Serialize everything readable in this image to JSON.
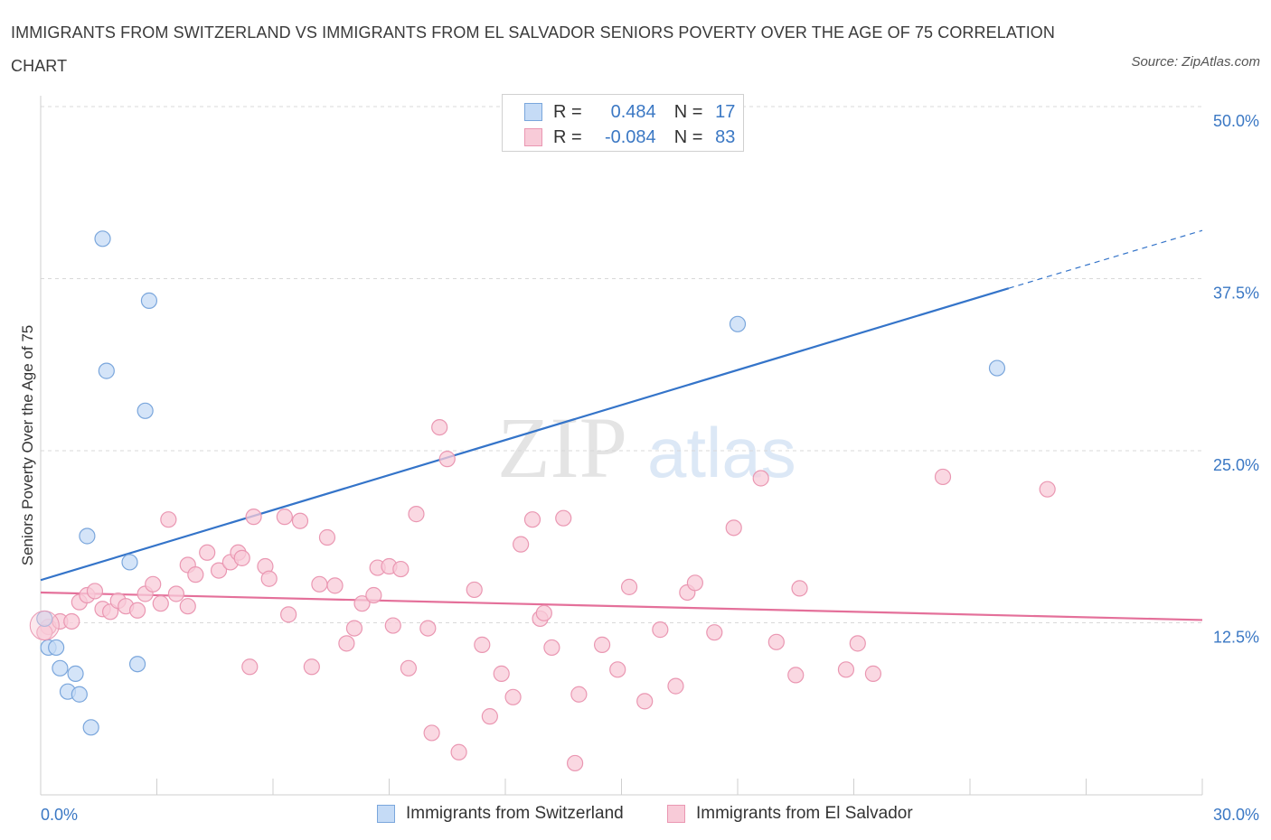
{
  "title": "IMMIGRANTS FROM SWITZERLAND VS IMMIGRANTS FROM EL SALVADOR SENIORS POVERTY OVER THE AGE OF 75 CORRELATION CHART",
  "source": "Source: ZipAtlas.com",
  "watermark": {
    "zip": "ZIP",
    "atlas": "atlas"
  },
  "legend": {
    "r_label": "R =",
    "n_label": "N =",
    "rows": [
      {
        "r": "0.484",
        "n": "17",
        "color": "#a9c8ef"
      },
      {
        "r": "-0.084",
        "n": "83",
        "color": "#f5b6c9"
      }
    ]
  },
  "bottom_legend": [
    "Immigrants from Switzerland",
    "Immigrants from El Salvador"
  ],
  "colors": {
    "blue_fill": "#c5dbf6",
    "blue_stroke": "#7aa6dc",
    "blue_line": "#3474c9",
    "pink_fill": "#f8cbd8",
    "pink_stroke": "#ea97b2",
    "pink_line": "#e4709a",
    "tick_label": "#3b78c4",
    "grid": "#d9d9d9"
  },
  "chart_data": {
    "type": "scatter",
    "xlabel": "",
    "ylabel": "Seniors Poverty Over the Age of 75",
    "xlim": [
      0,
      30
    ],
    "ylim": [
      0,
      50
    ],
    "x_tick_labels": [
      {
        "value": 0,
        "label": "0.0%"
      },
      {
        "value": 30,
        "label": "30.0%"
      }
    ],
    "y_tick_labels": [
      {
        "value": 12.5,
        "label": "12.5%"
      },
      {
        "value": 25,
        "label": "25.0%"
      },
      {
        "value": 37.5,
        "label": "37.5%"
      },
      {
        "value": 50,
        "label": "50.0%"
      }
    ],
    "grid": "horizontal dashed",
    "series": [
      {
        "name": "Immigrants from Switzerland",
        "r": 0.484,
        "n": 17,
        "points": [
          [
            0.1,
            12.8
          ],
          [
            0.2,
            10.7
          ],
          [
            0.4,
            10.7
          ],
          [
            0.5,
            9.2
          ],
          [
            0.7,
            7.5
          ],
          [
            0.9,
            8.8
          ],
          [
            1.0,
            7.3
          ],
          [
            1.2,
            18.8
          ],
          [
            1.3,
            4.9
          ],
          [
            1.6,
            40.4
          ],
          [
            1.7,
            30.8
          ],
          [
            2.3,
            16.9
          ],
          [
            2.5,
            9.5
          ],
          [
            2.7,
            27.9
          ],
          [
            2.8,
            35.9
          ],
          [
            18.0,
            34.2
          ],
          [
            24.7,
            31.0
          ]
        ],
        "trend": {
          "x1": 0,
          "y1": 15.6,
          "x2": 25.0,
          "y2": 36.8,
          "dash_to_x": 30,
          "dash_to_y": 41.0
        }
      },
      {
        "name": "Immigrants from El Salvador",
        "r": -0.084,
        "n": 83,
        "points": [
          [
            0.2,
            12.2
          ],
          [
            0.5,
            12.6
          ],
          [
            0.8,
            12.6
          ],
          [
            1.0,
            14.0
          ],
          [
            1.2,
            14.5
          ],
          [
            1.4,
            14.8
          ],
          [
            1.6,
            13.5
          ],
          [
            1.8,
            13.3
          ],
          [
            2.0,
            14.1
          ],
          [
            2.2,
            13.7
          ],
          [
            2.5,
            13.4
          ],
          [
            2.7,
            14.6
          ],
          [
            2.9,
            15.3
          ],
          [
            3.1,
            13.9
          ],
          [
            3.3,
            20.0
          ],
          [
            3.5,
            14.6
          ],
          [
            3.8,
            13.7
          ],
          [
            3.8,
            16.7
          ],
          [
            4.0,
            16.0
          ],
          [
            4.3,
            17.6
          ],
          [
            4.6,
            16.3
          ],
          [
            4.9,
            16.9
          ],
          [
            5.1,
            17.6
          ],
          [
            5.2,
            17.2
          ],
          [
            5.4,
            9.3
          ],
          [
            5.5,
            20.2
          ],
          [
            5.8,
            16.6
          ],
          [
            5.9,
            15.7
          ],
          [
            6.3,
            20.2
          ],
          [
            6.4,
            13.1
          ],
          [
            6.7,
            19.9
          ],
          [
            7.0,
            9.3
          ],
          [
            7.2,
            15.3
          ],
          [
            7.4,
            18.7
          ],
          [
            7.6,
            15.2
          ],
          [
            7.9,
            11.0
          ],
          [
            8.1,
            12.1
          ],
          [
            8.3,
            13.9
          ],
          [
            8.6,
            14.5
          ],
          [
            8.7,
            16.5
          ],
          [
            9.0,
            16.6
          ],
          [
            9.1,
            12.3
          ],
          [
            9.3,
            16.4
          ],
          [
            9.5,
            9.2
          ],
          [
            9.7,
            20.4
          ],
          [
            10.0,
            12.1
          ],
          [
            10.1,
            4.5
          ],
          [
            10.3,
            26.7
          ],
          [
            10.5,
            24.4
          ],
          [
            10.8,
            3.1
          ],
          [
            11.2,
            14.9
          ],
          [
            11.4,
            10.9
          ],
          [
            11.6,
            5.7
          ],
          [
            11.9,
            8.8
          ],
          [
            12.2,
            7.1
          ],
          [
            12.4,
            18.2
          ],
          [
            12.7,
            20.0
          ],
          [
            12.9,
            12.8
          ],
          [
            13.0,
            13.2
          ],
          [
            13.2,
            10.7
          ],
          [
            13.5,
            20.1
          ],
          [
            13.8,
            2.3
          ],
          [
            13.9,
            7.3
          ],
          [
            14.5,
            10.9
          ],
          [
            14.9,
            9.1
          ],
          [
            15.2,
            15.1
          ],
          [
            15.6,
            6.8
          ],
          [
            16.0,
            12.0
          ],
          [
            16.4,
            7.9
          ],
          [
            16.7,
            14.7
          ],
          [
            16.9,
            15.4
          ],
          [
            17.4,
            11.8
          ],
          [
            17.9,
            19.4
          ],
          [
            18.6,
            23.0
          ],
          [
            19.0,
            11.1
          ],
          [
            19.5,
            8.7
          ],
          [
            19.6,
            15.0
          ],
          [
            20.8,
            9.1
          ],
          [
            21.1,
            11.0
          ],
          [
            21.5,
            8.8
          ],
          [
            23.3,
            23.1
          ],
          [
            26.0,
            22.2
          ],
          [
            0.1,
            11.8
          ]
        ],
        "trend": {
          "x1": 0,
          "y1": 14.7,
          "x2": 30,
          "y2": 12.7
        }
      }
    ]
  }
}
